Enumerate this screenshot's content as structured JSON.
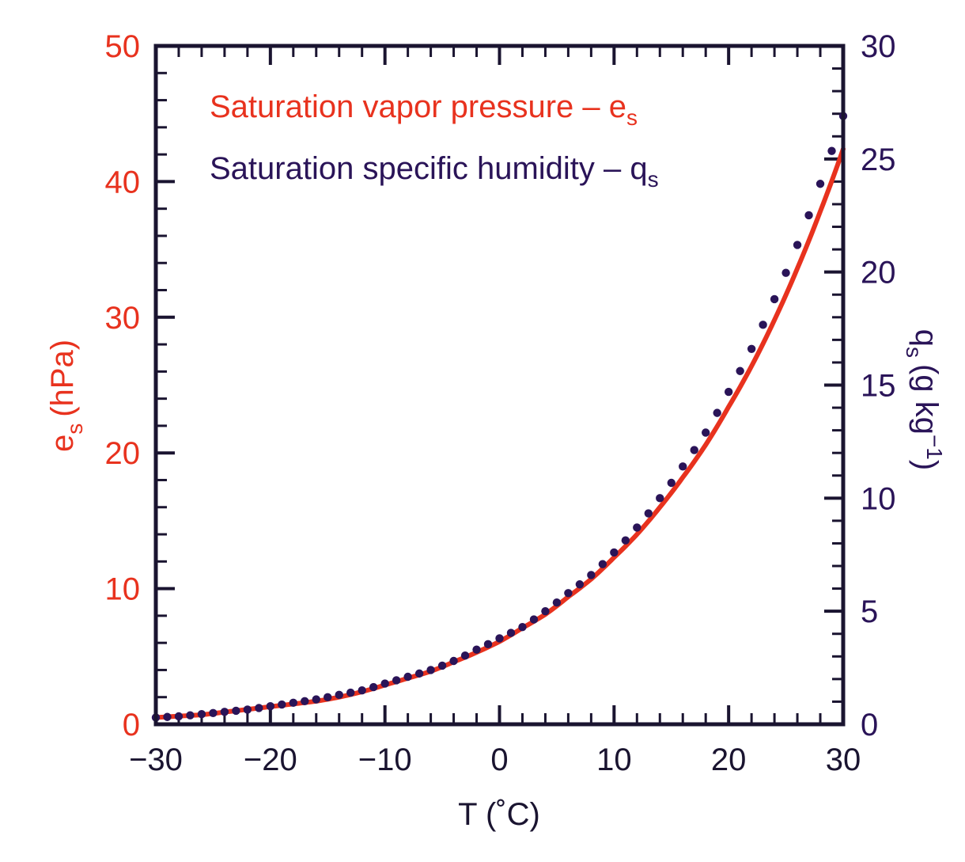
{
  "colors": {
    "es": "#e8321e",
    "qs": "#2a1458",
    "axis": "#1a1430",
    "background": "#ffffff"
  },
  "chart_data": {
    "type": "line",
    "legend": {
      "placement": "top-left",
      "entries": [
        {
          "text": "Saturation vapor pressure – e",
          "sub": "s",
          "series": "es"
        },
        {
          "text": "Saturation specific humidity – q",
          "sub": "s",
          "series": "qs"
        }
      ]
    },
    "x_axis": {
      "label": "T (˚C)",
      "range": [
        -30,
        30
      ],
      "major_ticks": [
        -30,
        -20,
        -10,
        0,
        10,
        20,
        30
      ],
      "tick_labels": [
        "−30",
        "−20",
        "−10",
        "0",
        "10",
        "20",
        "30"
      ],
      "minor_step": 2
    },
    "y_axis_left": {
      "label_main": "e",
      "label_sub": "s",
      "label_unit": "(hPa)",
      "range": [
        0,
        50
      ],
      "major_ticks": [
        0,
        10,
        20,
        30,
        40,
        50
      ],
      "tick_labels": [
        "0",
        "10",
        "20",
        "30",
        "40",
        "50"
      ],
      "minor_step": 2
    },
    "y_axis_right": {
      "label_main": "q",
      "label_sub": "s",
      "label_unit": "(g kg",
      "label_sup": "−1",
      "label_close": ")",
      "range": [
        0,
        30
      ],
      "major_ticks": [
        0,
        5,
        10,
        15,
        20,
        25,
        30
      ],
      "tick_labels": [
        "0",
        "5",
        "10",
        "15",
        "20",
        "25",
        "30"
      ],
      "minor_step": 1
    },
    "series": [
      {
        "id": "es",
        "axis": "left",
        "style": "solid",
        "x": [
          -30,
          -28,
          -26,
          -24,
          -22,
          -20,
          -18,
          -16,
          -14,
          -12,
          -10,
          -8,
          -6,
          -4,
          -2,
          0,
          2,
          4,
          6,
          8,
          10,
          12,
          14,
          16,
          18,
          20,
          22,
          24,
          26,
          28,
          30
        ],
        "values": [
          0.5,
          0.6,
          0.7,
          0.9,
          1.1,
          1.3,
          1.5,
          1.7,
          2.0,
          2.4,
          2.9,
          3.4,
          3.9,
          4.6,
          5.3,
          6.1,
          7.1,
          8.1,
          9.4,
          10.7,
          12.3,
          14.0,
          16.0,
          18.2,
          20.6,
          23.4,
          26.4,
          29.8,
          33.6,
          37.8,
          42.4
        ]
      },
      {
        "id": "qs",
        "axis": "right",
        "style": "dotted",
        "x": [
          -30,
          -28,
          -26,
          -24,
          -22,
          -20,
          -18,
          -16,
          -14,
          -12,
          -10,
          -8,
          -6,
          -4,
          -2,
          0,
          2,
          4,
          6,
          8,
          10,
          12,
          14,
          16,
          18,
          20,
          22,
          24,
          26,
          28,
          30
        ],
        "values": [
          0.3,
          0.35,
          0.45,
          0.55,
          0.65,
          0.8,
          0.95,
          1.1,
          1.3,
          1.5,
          1.8,
          2.1,
          2.4,
          2.8,
          3.3,
          3.8,
          4.3,
          5.0,
          5.8,
          6.6,
          7.6,
          8.7,
          10.0,
          11.4,
          12.9,
          14.7,
          16.6,
          18.8,
          21.2,
          23.9,
          26.9
        ]
      }
    ]
  }
}
